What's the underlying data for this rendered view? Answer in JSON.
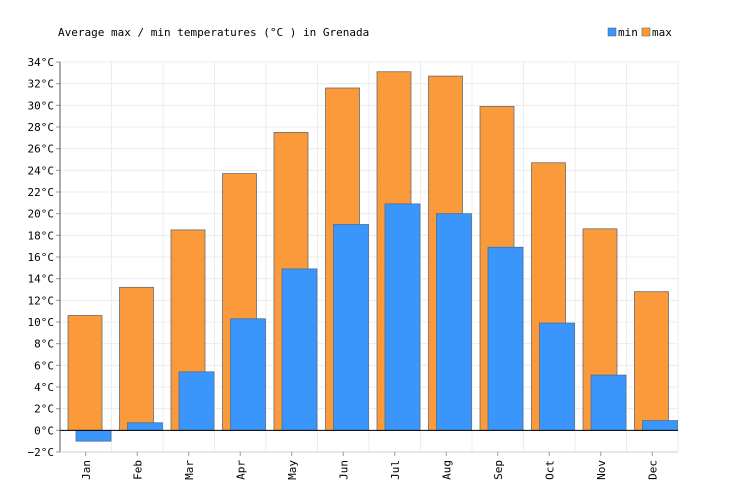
{
  "chart_data": {
    "type": "bar",
    "title": "Average max / min temperatures (°C ) in Grenada",
    "categories": [
      "Jan",
      "Feb",
      "Mar",
      "Apr",
      "May",
      "Jun",
      "Jul",
      "Aug",
      "Sep",
      "Oct",
      "Nov",
      "Dec"
    ],
    "series": [
      {
        "name": "min",
        "color": "#3a96fa",
        "values": [
          -1.0,
          0.7,
          5.4,
          10.3,
          14.9,
          19.0,
          20.9,
          20.0,
          16.9,
          9.9,
          5.1,
          0.9
        ]
      },
      {
        "name": "max",
        "color": "#fb9a3b",
        "values": [
          10.6,
          13.2,
          18.5,
          23.7,
          27.5,
          31.6,
          33.1,
          32.7,
          29.9,
          24.7,
          18.6,
          12.8
        ]
      }
    ],
    "yticks": [
      "−2°C",
      "0°C",
      "2°C",
      "4°C",
      "6°C",
      "8°C",
      "10°C",
      "12°C",
      "14°C",
      "16°C",
      "18°C",
      "20°C",
      "22°C",
      "24°C",
      "26°C",
      "28°C",
      "30°C",
      "32°C",
      "34°C"
    ],
    "ylim": [
      -2,
      34
    ],
    "ystep": 2,
    "grid": true,
    "legend": "top-right",
    "xlabel": "",
    "ylabel": ""
  }
}
